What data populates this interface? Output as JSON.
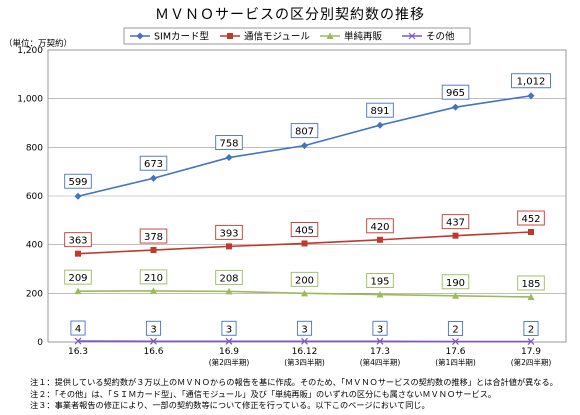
{
  "chart_data": {
    "type": "line",
    "title": "ＭＶＮＯサービスの区分別契約数の推移",
    "unit_label": "（単位：万契約）",
    "categories": [
      "16.3",
      "16.6",
      "16.9",
      "16.12",
      "17.3",
      "17.6",
      "17.9"
    ],
    "category_sublabels": [
      "",
      "",
      "(第2四半期)",
      "(第3四半期)",
      "(第4四半期)",
      "(第1四半期)",
      "(第2四半期)"
    ],
    "ylim": [
      0,
      1200
    ],
    "yticks": [
      0,
      200,
      400,
      600,
      800,
      1000,
      1200
    ],
    "ytick_labels": [
      "0",
      "200",
      "400",
      "600",
      "800",
      "1,000",
      "1,200"
    ],
    "grid": true,
    "legend_position": "top",
    "series": [
      {
        "name": "SIMカード型",
        "color": "#4472c4",
        "marker": "diamond",
        "values": [
          599,
          673,
          758,
          807,
          891,
          965,
          1012
        ],
        "labels": [
          "599",
          "673",
          "758",
          "807",
          "891",
          "965",
          "1,012"
        ],
        "label_border": "#4472c4"
      },
      {
        "name": "通信モジュール",
        "color": "#c0392b",
        "marker": "square",
        "values": [
          363,
          378,
          393,
          405,
          420,
          437,
          452
        ],
        "labels": [
          "363",
          "378",
          "393",
          "405",
          "420",
          "437",
          "452"
        ],
        "label_border": "#c0392b"
      },
      {
        "name": "単純再販",
        "color": "#9bbb59",
        "marker": "triangle",
        "values": [
          209,
          210,
          208,
          200,
          195,
          190,
          185
        ],
        "labels": [
          "209",
          "210",
          "208",
          "200",
          "195",
          "190",
          "185"
        ],
        "label_border": "#9bbb59"
      },
      {
        "name": "その他",
        "color": "#7e57c2",
        "marker": "x",
        "values": [
          4,
          3,
          3,
          3,
          3,
          2,
          2
        ],
        "labels": [
          "4",
          "3",
          "3",
          "3",
          "3",
          "2",
          "2"
        ],
        "label_border": "#4472c4"
      }
    ]
  },
  "notes": [
    "注１：提供している契約数が３万以上のＭＶＮＯからの報告を基に作成。そのため、「ＭＶＮＯサービスの契約数の推移」とは合計値が異なる。",
    "注２：「その他」は、「ＳＩＭカード型」、「通信モジュール」及び「単純再販」のいずれの区分にも属さないＭＶＮＯサービス。",
    "注３：事業者報告の修正により、一部の契約数等について修正を行っている。以下このページにおいて同じ。"
  ]
}
